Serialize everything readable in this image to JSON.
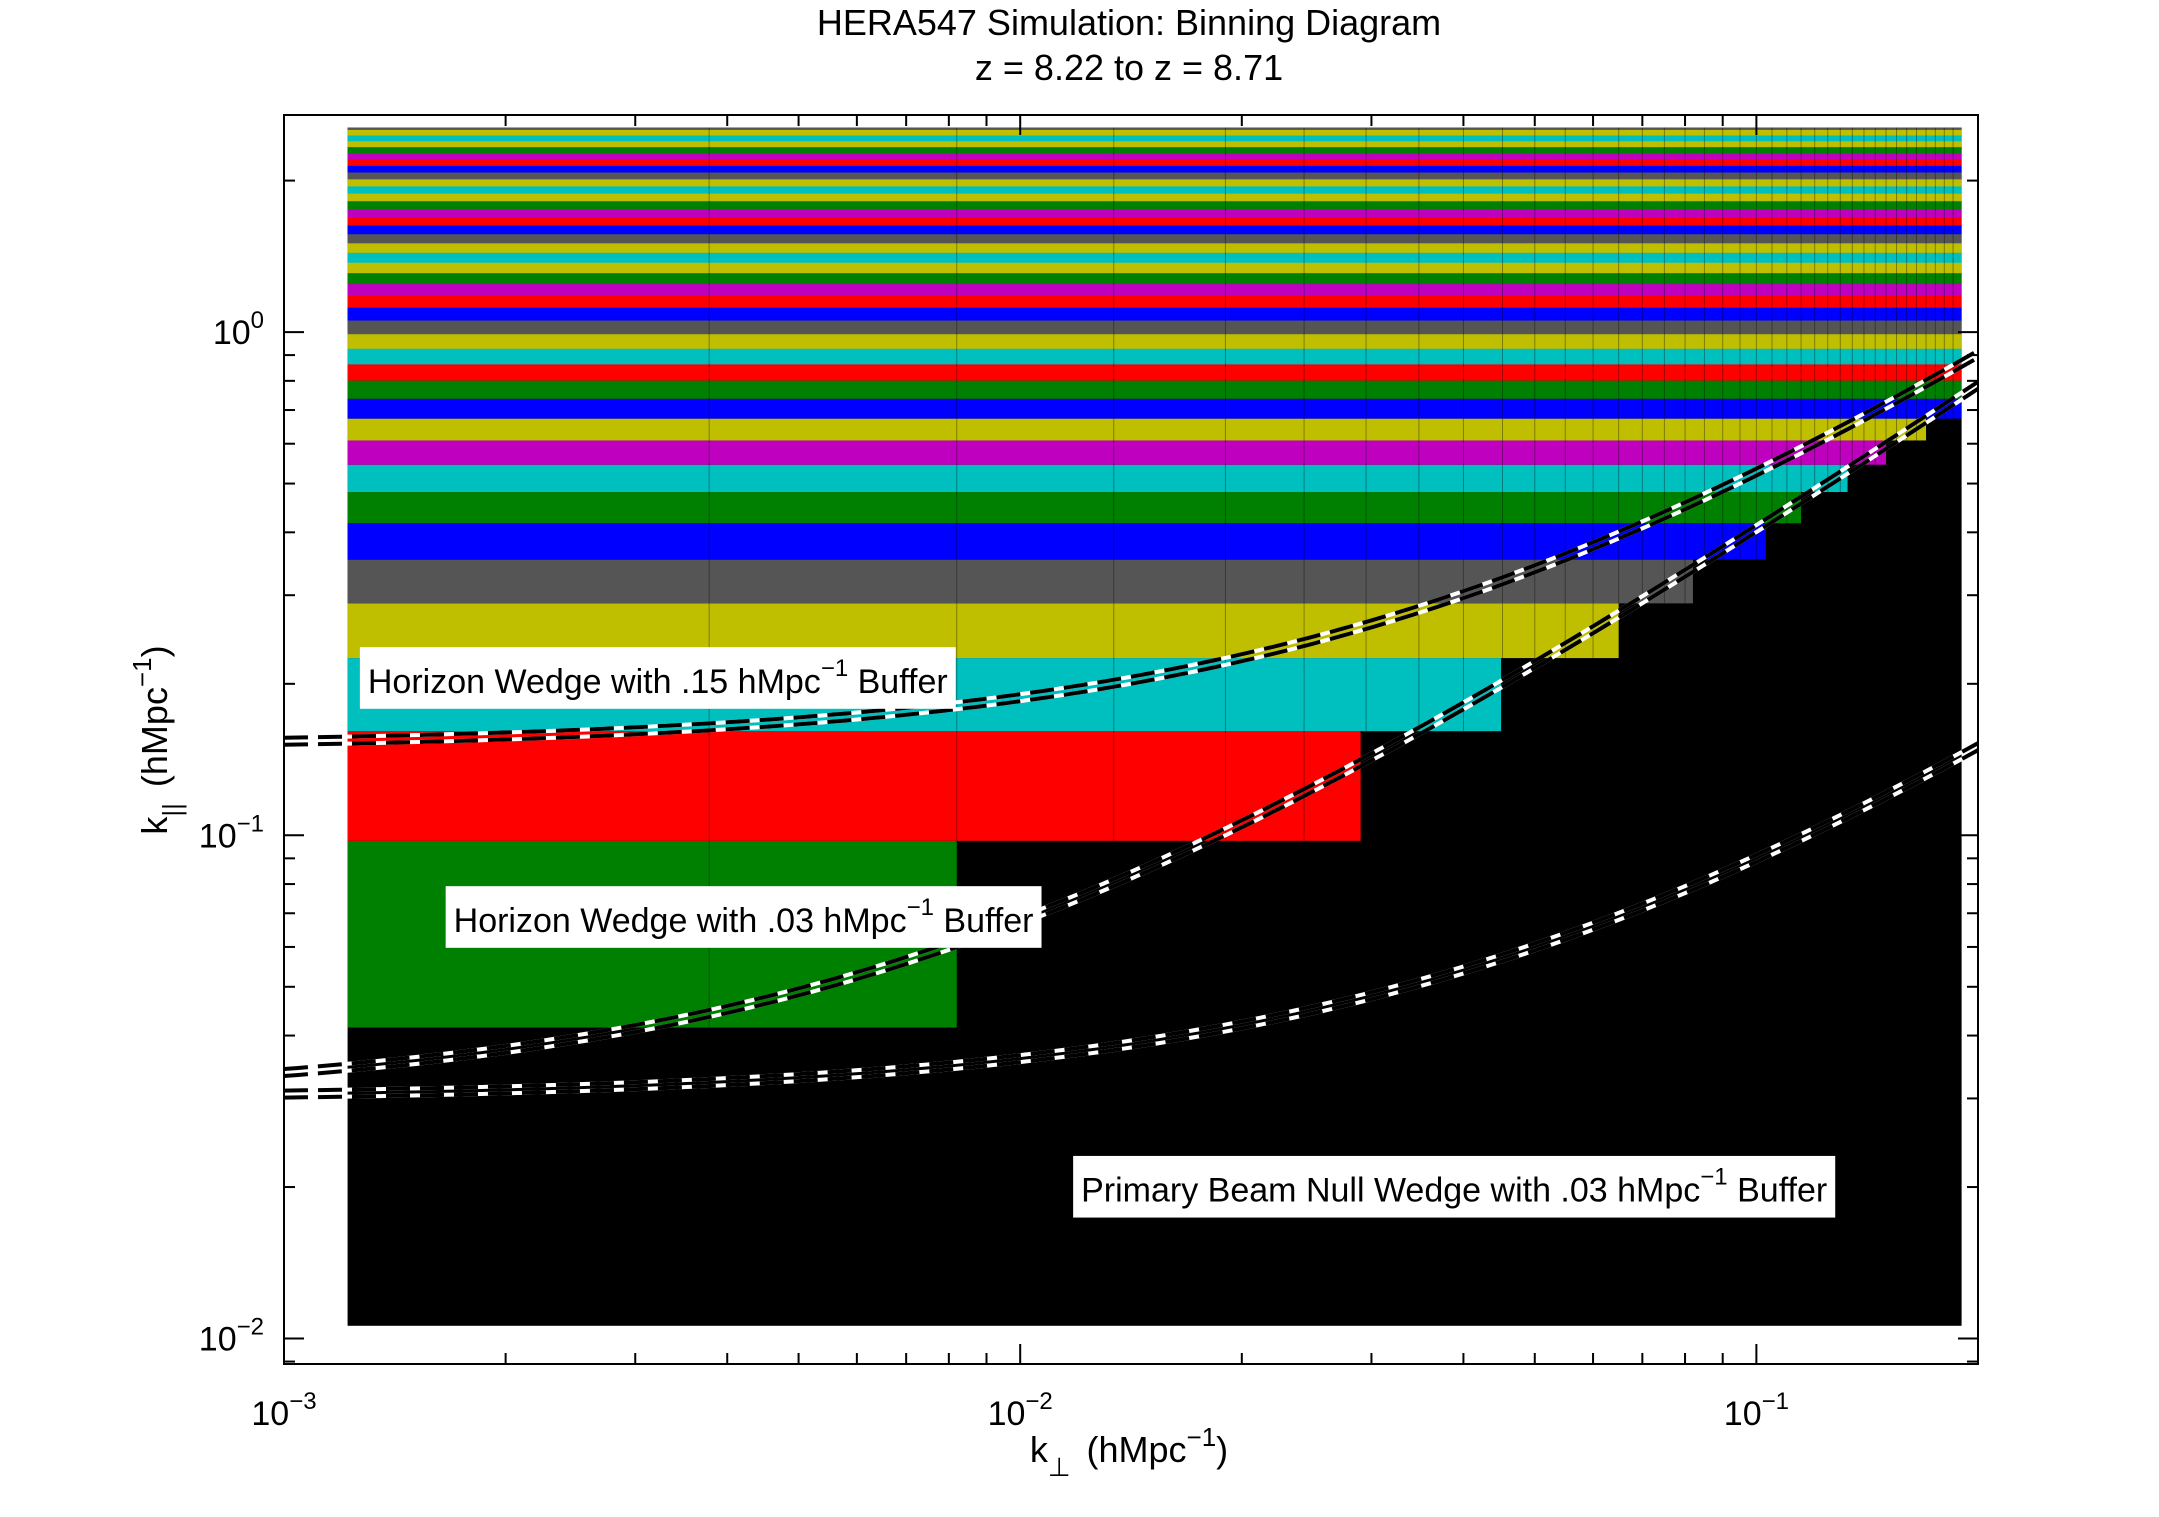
{
  "chart_data": {
    "type": "heatmap",
    "title": "HERA547 Simulation: Binning Diagram",
    "subtitle": "z = 8.22 to z = 8.71",
    "xlabel": {
      "main": "k",
      "sub": "⊥",
      "unit": "(hMpc",
      "sup": "−1",
      "close": ")"
    },
    "ylabel": {
      "main": "k",
      "sub": "||",
      "unit": "(hMpc",
      "sup": "−1",
      "close": ")"
    },
    "xscale": "log",
    "yscale": "log",
    "xlim": [
      0.001,
      0.2
    ],
    "ylim": [
      0.0089,
      2.7
    ],
    "x_ticks": [
      {
        "value": 0.001,
        "base": "10",
        "exp": "−3"
      },
      {
        "value": 0.01,
        "base": "10",
        "exp": "−2"
      },
      {
        "value": 0.1,
        "base": "10",
        "exp": "−1"
      }
    ],
    "y_ticks": [
      {
        "value": 0.01,
        "base": "10",
        "exp": "−2"
      },
      {
        "value": 0.1,
        "base": "10",
        "exp": "−1"
      },
      {
        "value": 1,
        "base": "10",
        "exp": "0"
      }
    ],
    "k_perp_min": 0.00122,
    "k_perp_max": 0.19,
    "k_par_min": 0.0106,
    "k_par_max": 2.55,
    "bin_colors": [
      "#008000",
      "#ff0000",
      "#00bfbf",
      "#bfbf00",
      "#555555",
      "#0000ff",
      "#008000",
      "#00bfbf",
      "#bf00bf",
      "#bfbf00",
      "#0000ff",
      "#008000",
      "#ff0000"
    ],
    "bins": [
      {
        "k_par_lo": 0.0415,
        "k_par_hi": 0.0975,
        "k_perp_edge": 0.0082
      },
      {
        "k_par_lo": 0.0975,
        "k_par_hi": 0.161,
        "k_perp_edge": 0.029
      },
      {
        "k_par_lo": 0.161,
        "k_par_hi": 0.225,
        "k_perp_edge": 0.045
      },
      {
        "k_par_lo": 0.225,
        "k_par_hi": 0.289,
        "k_perp_edge": 0.065
      },
      {
        "k_par_lo": 0.289,
        "k_par_hi": 0.353,
        "k_perp_edge": 0.082
      },
      {
        "k_par_lo": 0.353,
        "k_par_hi": 0.417,
        "k_perp_edge": 0.103
      },
      {
        "k_par_lo": 0.417,
        "k_par_hi": 0.481,
        "k_perp_edge": 0.115
      },
      {
        "k_par_lo": 0.481,
        "k_par_hi": 0.545,
        "k_perp_edge": 0.133
      },
      {
        "k_par_lo": 0.545,
        "k_par_hi": 0.609,
        "k_perp_edge": 0.15
      },
      {
        "k_par_lo": 0.609,
        "k_par_hi": 0.673,
        "k_perp_edge": 0.17
      },
      {
        "k_par_lo": 0.673,
        "k_par_hi": 0.737,
        "k_perp_edge": 0.19
      },
      {
        "k_par_lo": 0.737,
        "k_par_hi": 0.801,
        "k_perp_edge": 0.19
      },
      {
        "k_par_lo": 0.801,
        "k_par_hi": 0.865,
        "k_perp_edge": 0.19
      }
    ],
    "upper_band": {
      "k_par_lo": 0.865,
      "k_par_hi": 2.55,
      "step": 0.064,
      "colors": [
        "#00bfbf",
        "#bfbf00",
        "#555555",
        "#0000ff",
        "#ff0000",
        "#bf00bf",
        "#008000",
        "#bfbf00"
      ]
    },
    "k_perp_grid": [
      0.00378,
      0.0082,
      0.0134,
      0.019,
      0.0243,
      0.0295,
      0.0348,
      0.04,
      0.0452,
      0.05,
      0.055,
      0.06,
      0.065,
      0.07,
      0.075,
      0.08,
      0.085,
      0.09,
      0.095,
      0.1,
      0.105,
      0.11,
      0.115,
      0.12,
      0.125,
      0.13,
      0.135,
      0.14,
      0.145,
      0.15,
      0.155,
      0.16,
      0.165,
      0.17,
      0.175,
      0.18,
      0.185
    ],
    "null_color": "#000000",
    "wedge_lines": [
      {
        "name": "horizon-wedge-015",
        "coef": 3.77,
        "buffer": 0.15
      },
      {
        "name": "horizon-wedge-003",
        "coef": 3.77,
        "buffer": 0.03
      },
      {
        "name": "primary-beam-null-wedge",
        "coef": 0.6,
        "buffer": 0.03
      }
    ],
    "annotations": [
      {
        "name": "horizon-wedge-015-label",
        "text": "Horizon Wedge with .15 hMpc",
        "sup": "−1",
        "tail": " Buffer",
        "k_perp": 0.0013,
        "k_par": 0.2
      },
      {
        "name": "horizon-wedge-003-label",
        "text": "Horizon Wedge with .03 hMpc",
        "sup": "−1",
        "tail": " Buffer",
        "k_perp": 0.0017,
        "k_par": 0.067
      },
      {
        "name": "primary-beam-null-label",
        "text": "Primary Beam Null Wedge with .03 hMpc",
        "sup": "−1",
        "tail": " Buffer",
        "k_perp": 0.0121,
        "k_par": 0.0195
      }
    ],
    "grid": false,
    "legend": "none"
  }
}
